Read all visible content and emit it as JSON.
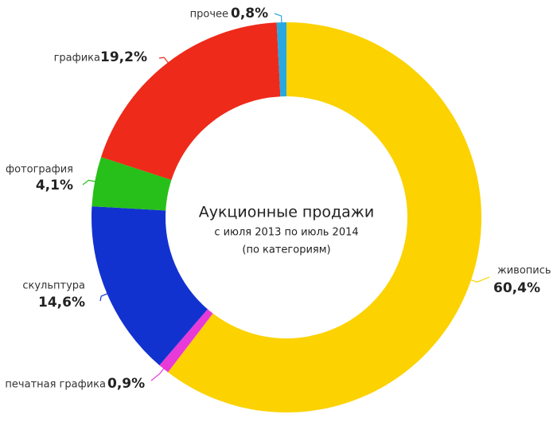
{
  "chart_data": {
    "type": "donut",
    "title": "Аукционные продажи",
    "subtitle": "с июля 2013 по июль 2014",
    "note": "(по категориям)",
    "categories": [
      "живопись",
      "печатная графика",
      "скульптура",
      "фотография",
      "графика",
      "прочее"
    ],
    "values": [
      60.4,
      0.9,
      14.6,
      4.1,
      19.2,
      0.8
    ],
    "value_labels": [
      "60,4%",
      "0,9%",
      "14,6%",
      "4,1%",
      "19,2%",
      "0,8%"
    ],
    "colors": [
      "#fcd200",
      "#e83ad8",
      "#1232d0",
      "#27c01a",
      "#ee2a1a",
      "#29a8e0"
    ]
  }
}
